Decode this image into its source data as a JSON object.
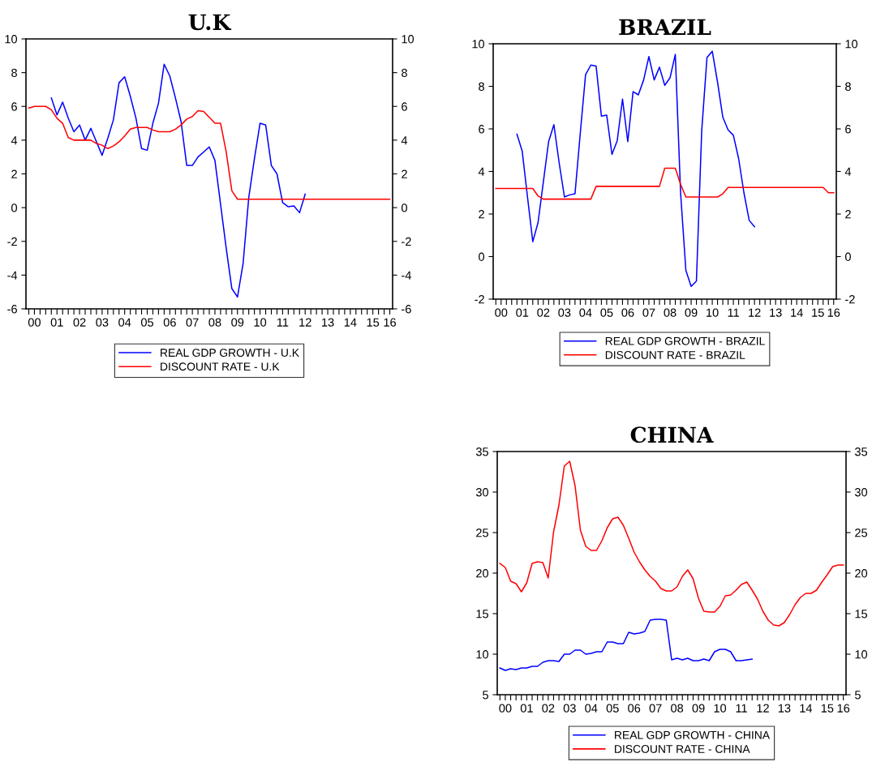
{
  "chart_data": [
    {
      "type": "line",
      "title": "U.K",
      "categories": [
        null,
        "00",
        null,
        null,
        null,
        "01",
        null,
        null,
        null,
        "02",
        null,
        null,
        null,
        "03",
        null,
        null,
        null,
        "04",
        null,
        null,
        null,
        "05",
        null,
        null,
        null,
        "06",
        null,
        null,
        null,
        "07",
        null,
        null,
        null,
        "08",
        null,
        null,
        null,
        "09",
        null,
        null,
        null,
        "10",
        null,
        null,
        null,
        "11",
        null,
        null,
        null,
        "12",
        null,
        null,
        null,
        "13",
        null,
        null,
        null,
        "14",
        null,
        null,
        null,
        "15",
        null,
        null,
        "16"
      ],
      "series": [
        {
          "name": "REAL GDP GROWTH - U.K",
          "color": "#0000ff",
          "values": [
            null,
            null,
            null,
            null,
            6.5,
            5.5,
            6.25,
            5.3,
            4.5,
            4.9,
            4.0,
            4.7,
            3.9,
            3.1,
            4.1,
            5.2,
            7.4,
            7.75,
            6.6,
            5.3,
            3.5,
            3.4,
            5.0,
            6.2,
            8.5,
            7.8,
            6.5,
            5.1,
            2.5,
            2.5,
            3.0,
            3.3,
            3.6,
            2.8,
            0.2,
            -2.4,
            -4.8,
            -5.3,
            -3.3,
            0.6,
            2.9,
            5.0,
            4.9,
            2.5,
            2.0,
            0.3,
            0.05,
            0.1,
            -0.3,
            0.8,
            null,
            null,
            null,
            null,
            null,
            null,
            null,
            null,
            null,
            null,
            null,
            null,
            null,
            null,
            null
          ]
        },
        {
          "name": "DISCOUNT RATE - U.K",
          "color": "#ff0000",
          "values": [
            5.9,
            6.0,
            6.0,
            6.0,
            5.8,
            5.3,
            5.0,
            4.15,
            4.0,
            4.0,
            4.0,
            4.0,
            3.8,
            3.7,
            3.5,
            3.65,
            3.9,
            4.25,
            4.65,
            4.75,
            4.75,
            4.75,
            4.6,
            4.5,
            4.5,
            4.5,
            4.65,
            4.9,
            5.25,
            5.4,
            5.75,
            5.7,
            5.35,
            5.0,
            5.0,
            3.3,
            1.0,
            0.5,
            0.5,
            0.5,
            0.5,
            0.5,
            0.5,
            0.5,
            0.5,
            0.5,
            0.5,
            0.5,
            0.5,
            0.5,
            0.5,
            0.5,
            0.5,
            0.5,
            0.5,
            0.5,
            0.5,
            0.5,
            0.5,
            0.5,
            0.5,
            0.5,
            0.5,
            0.5,
            0.5
          ]
        }
      ],
      "ylim": [
        -6,
        10
      ],
      "yticks": [
        -6,
        -4,
        -2,
        0,
        2,
        4,
        6,
        8,
        10
      ],
      "y2lim": [
        -6,
        10
      ],
      "y2ticks": [
        -6,
        -4,
        -2,
        0,
        2,
        4,
        6,
        8,
        10
      ],
      "legend": "bottom"
    },
    {
      "type": "line",
      "title": "BRAZIL",
      "categories": [
        null,
        "00",
        null,
        null,
        null,
        "01",
        null,
        null,
        null,
        "02",
        null,
        null,
        null,
        "03",
        null,
        null,
        null,
        "04",
        null,
        null,
        null,
        "05",
        null,
        null,
        null,
        "06",
        null,
        null,
        null,
        "07",
        null,
        null,
        null,
        "08",
        null,
        null,
        null,
        "09",
        null,
        null,
        null,
        "10",
        null,
        null,
        null,
        "11",
        null,
        null,
        null,
        "12",
        null,
        null,
        null,
        "13",
        null,
        null,
        null,
        "14",
        null,
        null,
        null,
        "15",
        null,
        null,
        "16"
      ],
      "series": [
        {
          "name": "REAL GDP GROWTH - BRAZIL",
          "color": "#0000ff",
          "values": [
            null,
            null,
            null,
            null,
            5.75,
            4.95,
            2.8,
            0.7,
            1.6,
            3.5,
            5.4,
            6.2,
            4.4,
            2.8,
            2.9,
            2.95,
            5.8,
            8.55,
            9.0,
            8.95,
            6.6,
            6.65,
            4.8,
            5.45,
            7.4,
            5.4,
            7.75,
            7.6,
            8.3,
            9.4,
            8.3,
            8.9,
            8.05,
            8.4,
            9.5,
            3.0,
            -0.65,
            -1.4,
            -1.15,
            5.9,
            9.35,
            9.65,
            8.2,
            6.55,
            5.95,
            5.7,
            4.6,
            3.0,
            1.7,
            1.4,
            null,
            null,
            null,
            null,
            null,
            null,
            null,
            null,
            null,
            null,
            null,
            null,
            null,
            null,
            null
          ]
        },
        {
          "name": "DISCOUNT RATE - BRAZIL",
          "color": "#ff0000",
          "values": [
            3.2,
            3.2,
            3.2,
            3.2,
            3.2,
            3.2,
            3.2,
            3.2,
            2.85,
            2.7,
            2.7,
            2.7,
            2.7,
            2.7,
            2.7,
            2.7,
            2.7,
            2.7,
            2.7,
            3.3,
            3.3,
            3.3,
            3.3,
            3.3,
            3.3,
            3.3,
            3.3,
            3.3,
            3.3,
            3.3,
            3.3,
            3.3,
            4.15,
            4.15,
            4.15,
            3.4,
            2.8,
            2.8,
            2.8,
            2.8,
            2.8,
            2.8,
            2.8,
            2.95,
            3.25,
            3.25,
            3.25,
            3.25,
            3.25,
            3.25,
            3.25,
            3.25,
            3.25,
            3.25,
            3.25,
            3.25,
            3.25,
            3.25,
            3.25,
            3.25,
            3.25,
            3.25,
            3.25,
            3.0,
            3.0
          ]
        }
      ],
      "ylim": [
        -2,
        10
      ],
      "yticks": [
        -2,
        0,
        2,
        4,
        6,
        8,
        10
      ],
      "y2lim": [
        -2,
        10
      ],
      "y2ticks": [
        -2,
        0,
        2,
        4,
        6,
        8,
        10
      ],
      "legend": "bottom"
    },
    {
      "type": "line",
      "title": "CHINA",
      "categories": [
        null,
        "00",
        null,
        null,
        null,
        "01",
        null,
        null,
        null,
        "02",
        null,
        null,
        null,
        "03",
        null,
        null,
        null,
        "04",
        null,
        null,
        null,
        "05",
        null,
        null,
        null,
        "06",
        null,
        null,
        null,
        "07",
        null,
        null,
        null,
        "08",
        null,
        null,
        null,
        "09",
        null,
        null,
        null,
        "10",
        null,
        null,
        null,
        "11",
        null,
        null,
        null,
        "12",
        null,
        null,
        null,
        "13",
        null,
        null,
        null,
        "14",
        null,
        null,
        null,
        "15",
        null,
        null,
        "16"
      ],
      "series": [
        {
          "name": "REAL GDP GROWTH - CHINA",
          "color": "#0000ff",
          "values": [
            8.3,
            8.0,
            8.2,
            8.1,
            8.3,
            8.3,
            8.5,
            8.5,
            9.0,
            9.2,
            9.2,
            9.1,
            10.0,
            10.0,
            10.5,
            10.5,
            10.0,
            10.1,
            10.3,
            10.3,
            11.5,
            11.5,
            11.3,
            11.3,
            12.7,
            12.5,
            12.6,
            12.8,
            14.2,
            14.3,
            14.3,
            14.2,
            9.3,
            9.5,
            9.3,
            9.5,
            9.2,
            9.2,
            9.4,
            9.2,
            10.3,
            10.6,
            10.6,
            10.3,
            9.2,
            9.2,
            9.3,
            9.4,
            null,
            null,
            null,
            null,
            null,
            null,
            null,
            null,
            null,
            null,
            null,
            null,
            null,
            null,
            null,
            null,
            null
          ]
        },
        {
          "name": "DISCOUNT RATE - CHINA",
          "color": "#ff0000",
          "values": [
            21.2,
            20.7,
            19.0,
            18.7,
            17.7,
            18.8,
            21.2,
            21.4,
            21.3,
            19.4,
            25.1,
            28.4,
            33.2,
            33.8,
            30.8,
            25.3,
            23.3,
            22.8,
            22.8,
            24.0,
            25.6,
            26.7,
            26.9,
            25.9,
            24.3,
            22.6,
            21.4,
            20.4,
            19.6,
            19.0,
            18.1,
            17.8,
            17.8,
            18.3,
            19.6,
            20.4,
            19.3,
            16.9,
            15.3,
            15.2,
            15.2,
            15.9,
            17.2,
            17.3,
            17.9,
            18.6,
            18.9,
            17.9,
            16.8,
            15.3,
            14.2,
            13.6,
            13.5,
            13.9,
            14.9,
            16.1,
            17.0,
            17.5,
            17.5,
            17.9,
            18.9,
            19.8,
            20.8,
            21.0,
            21.0
          ]
        }
      ],
      "ylim": [
        5,
        35
      ],
      "yticks": [
        5,
        10,
        15,
        20,
        25,
        30,
        35
      ],
      "y2lim": [
        5,
        35
      ],
      "y2ticks": [
        5,
        10,
        15,
        20,
        25,
        30,
        35
      ],
      "legend": "bottom"
    }
  ]
}
